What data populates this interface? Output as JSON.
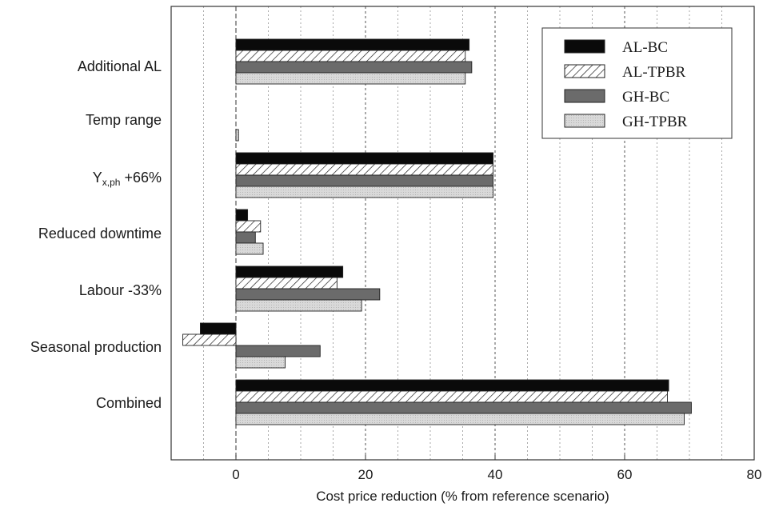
{
  "chart_data": {
    "type": "bar",
    "orientation": "horizontal",
    "categories": [
      "Additional AL",
      "Temp range",
      "Y_x,ph +66%",
      "Reduced downtime",
      "Labour -33%",
      "Seasonal production",
      "Combined"
    ],
    "category_label_parts": {
      "main": "Y",
      "subscript": "x,ph",
      "suffix": " +66%"
    },
    "series": [
      {
        "name": "AL-BC",
        "values": [
          36,
          0,
          39.7,
          1.8,
          16.5,
          -5.5,
          66.8
        ]
      },
      {
        "name": "AL-TPBR",
        "values": [
          35.4,
          0,
          39.7,
          3.8,
          15.6,
          -8.2,
          66.6
        ]
      },
      {
        "name": "GH-BC",
        "values": [
          36.4,
          0,
          39.7,
          3.0,
          22.2,
          13.0,
          70.3
        ]
      },
      {
        "name": "GH-TPBR",
        "values": [
          35.4,
          0.4,
          39.7,
          4.2,
          19.4,
          7.6,
          69.2
        ]
      }
    ],
    "xlabel": "Cost price reduction (% from reference scenario)",
    "ylabel": "",
    "xlim": [
      -10,
      80
    ],
    "xticks": [
      0,
      20,
      40,
      60,
      80
    ],
    "grid": "vertical",
    "legend_position": "top-right",
    "series_styles": [
      "solid-black",
      "diagonal-hatch",
      "dark-gray",
      "light-gray-dotted"
    ]
  }
}
